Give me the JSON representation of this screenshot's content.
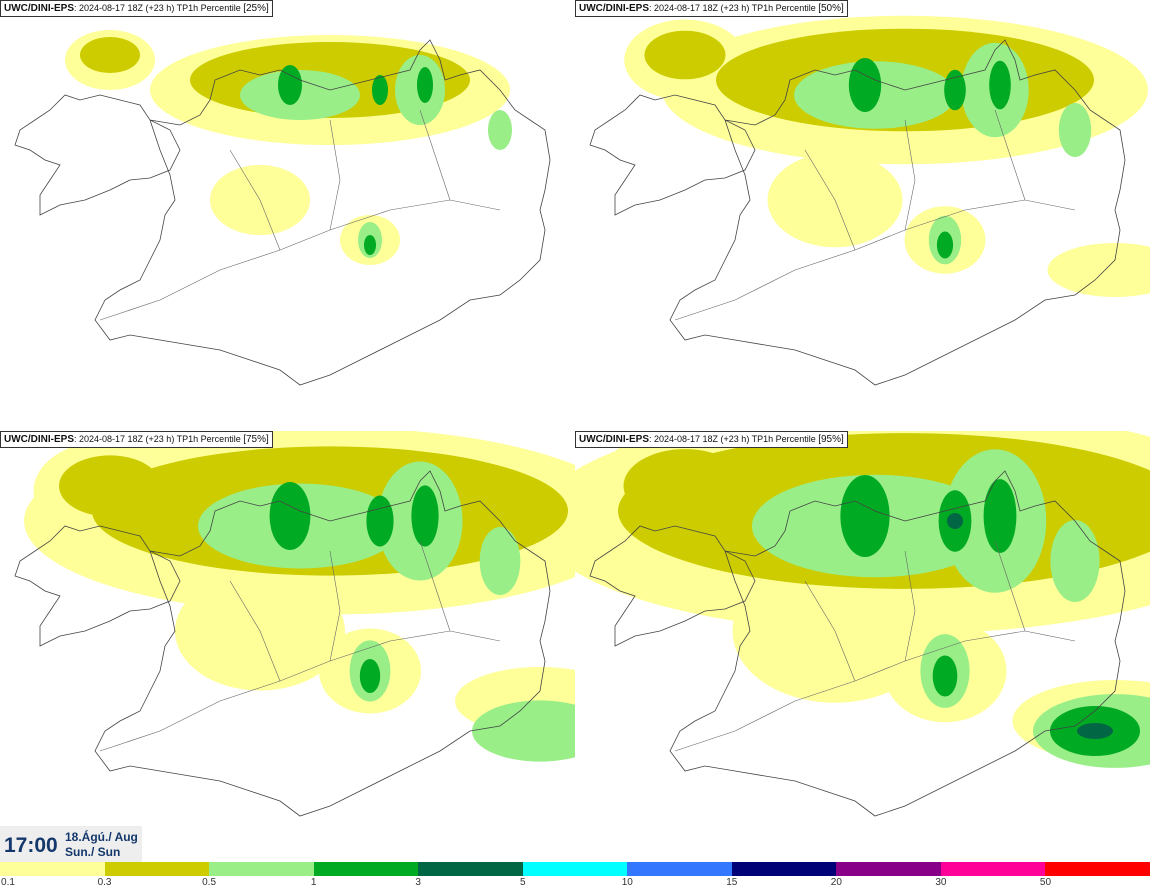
{
  "panels": [
    {
      "model": "UWC/DINI-EPS",
      "run": ": 2024-08-17 18Z (+23 h)",
      "field": " TP1h Percentile ",
      "percentile": "[25%]",
      "intensity": 0
    },
    {
      "model": "UWC/DINI-EPS",
      "run": ": 2024-08-17 18Z (+23 h)",
      "field": " TP1h Percentile ",
      "percentile": "[50%]",
      "intensity": 1
    },
    {
      "model": "UWC/DINI-EPS",
      "run": ": 2024-08-17 18Z (+23 h)",
      "field": " TP1h Percentile ",
      "percentile": "[75%]",
      "intensity": 2
    },
    {
      "model": "UWC/DINI-EPS",
      "run": ": 2024-08-17 18Z (+23 h)",
      "field": " TP1h Percentile ",
      "percentile": "[95%]",
      "intensity": 3
    }
  ],
  "valid_time": {
    "time": "17:00",
    "date_line1": "18.Ágú./ Aug",
    "date_line2": "Sun./ Sun"
  },
  "legend": {
    "labels": [
      "0.1",
      "0.3",
      "0.5",
      "1",
      "3",
      "5",
      "10",
      "15",
      "20",
      "30",
      "50"
    ],
    "colors": [
      "#ffff99",
      "#cccc00",
      "#99ee88",
      "#00aa22",
      "#006644",
      "#00ffff",
      "#3377ff",
      "#000077",
      "#880088",
      "#ff0099",
      "#ff0000"
    ]
  },
  "precip_colors": {
    "light": "#ffff99",
    "olive": "#cccc00",
    "lightgreen": "#99ee88",
    "green": "#00aa22",
    "darkgreen": "#006644"
  }
}
